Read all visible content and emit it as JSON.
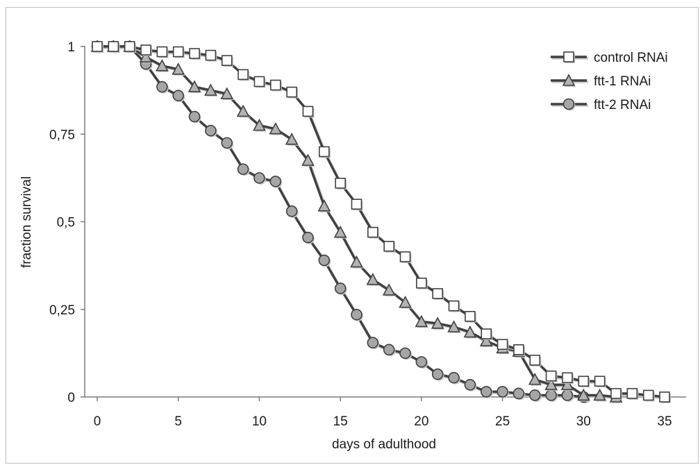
{
  "chart_data": {
    "type": "line",
    "title": "",
    "xlabel": "days of adulthood",
    "ylabel": "fraction survival",
    "xlim": [
      0,
      36
    ],
    "ylim": [
      0,
      1
    ],
    "x_ticks": [
      0,
      5,
      10,
      15,
      20,
      25,
      30,
      35
    ],
    "x_tick_labels": [
      "0",
      "5",
      "10",
      "15",
      "20",
      "25",
      "30",
      "35"
    ],
    "y_ticks": [
      0,
      0.25,
      0.5,
      0.75,
      1
    ],
    "y_tick_labels": [
      "0",
      "0,25",
      "0,5",
      "0,75",
      "1"
    ],
    "grid": false,
    "legend_position": "top-right",
    "series": [
      {
        "name": "control RNAi",
        "marker": "square",
        "color": "#404040",
        "fill": "#ffffff",
        "x": [
          0,
          1,
          2,
          3,
          4,
          5,
          6,
          7,
          8,
          9,
          10,
          11,
          12,
          13,
          14,
          15,
          16,
          17,
          18,
          19,
          20,
          21,
          22,
          23,
          24,
          25,
          26,
          27,
          28,
          29,
          30,
          31,
          32,
          33,
          34,
          35
        ],
        "y": [
          1,
          1,
          1,
          0.99,
          0.985,
          0.985,
          0.98,
          0.975,
          0.96,
          0.92,
          0.9,
          0.89,
          0.87,
          0.815,
          0.7,
          0.61,
          0.55,
          0.47,
          0.43,
          0.4,
          0.325,
          0.295,
          0.26,
          0.23,
          0.18,
          0.15,
          0.135,
          0.105,
          0.06,
          0.055,
          0.045,
          0.045,
          0.01,
          0.01,
          0.005,
          0
        ]
      },
      {
        "name": "ftt-1 RNAi",
        "marker": "triangle",
        "color": "#404040",
        "fill": "#b3b3b3",
        "x": [
          0,
          1,
          2,
          3,
          4,
          5,
          6,
          7,
          8,
          9,
          10,
          11,
          12,
          13,
          14,
          15,
          16,
          17,
          18,
          19,
          20,
          21,
          22,
          23,
          24,
          25,
          26,
          27,
          28,
          29,
          30,
          31,
          32
        ],
        "y": [
          1,
          1,
          1,
          0.97,
          0.945,
          0.935,
          0.885,
          0.875,
          0.865,
          0.815,
          0.775,
          0.765,
          0.735,
          0.675,
          0.545,
          0.47,
          0.385,
          0.335,
          0.305,
          0.27,
          0.215,
          0.21,
          0.2,
          0.185,
          0.16,
          0.14,
          0.13,
          0.05,
          0.035,
          0.035,
          0.005,
          0.005,
          0
        ]
      },
      {
        "name": "ftt-2 RNAi",
        "marker": "circle",
        "color": "#404040",
        "fill": "#a6a6a6",
        "x": [
          0,
          1,
          2,
          3,
          4,
          5,
          6,
          7,
          8,
          9,
          10,
          11,
          12,
          13,
          14,
          15,
          16,
          17,
          18,
          19,
          20,
          21,
          22,
          23,
          24,
          25,
          26,
          27,
          28,
          29,
          30
        ],
        "y": [
          1,
          1,
          1,
          0.95,
          0.885,
          0.86,
          0.8,
          0.76,
          0.725,
          0.65,
          0.625,
          0.615,
          0.53,
          0.455,
          0.39,
          0.31,
          0.235,
          0.155,
          0.135,
          0.125,
          0.1,
          0.065,
          0.055,
          0.035,
          0.015,
          0.015,
          0.01,
          0.005,
          0.005,
          0.005,
          0
        ]
      }
    ]
  }
}
